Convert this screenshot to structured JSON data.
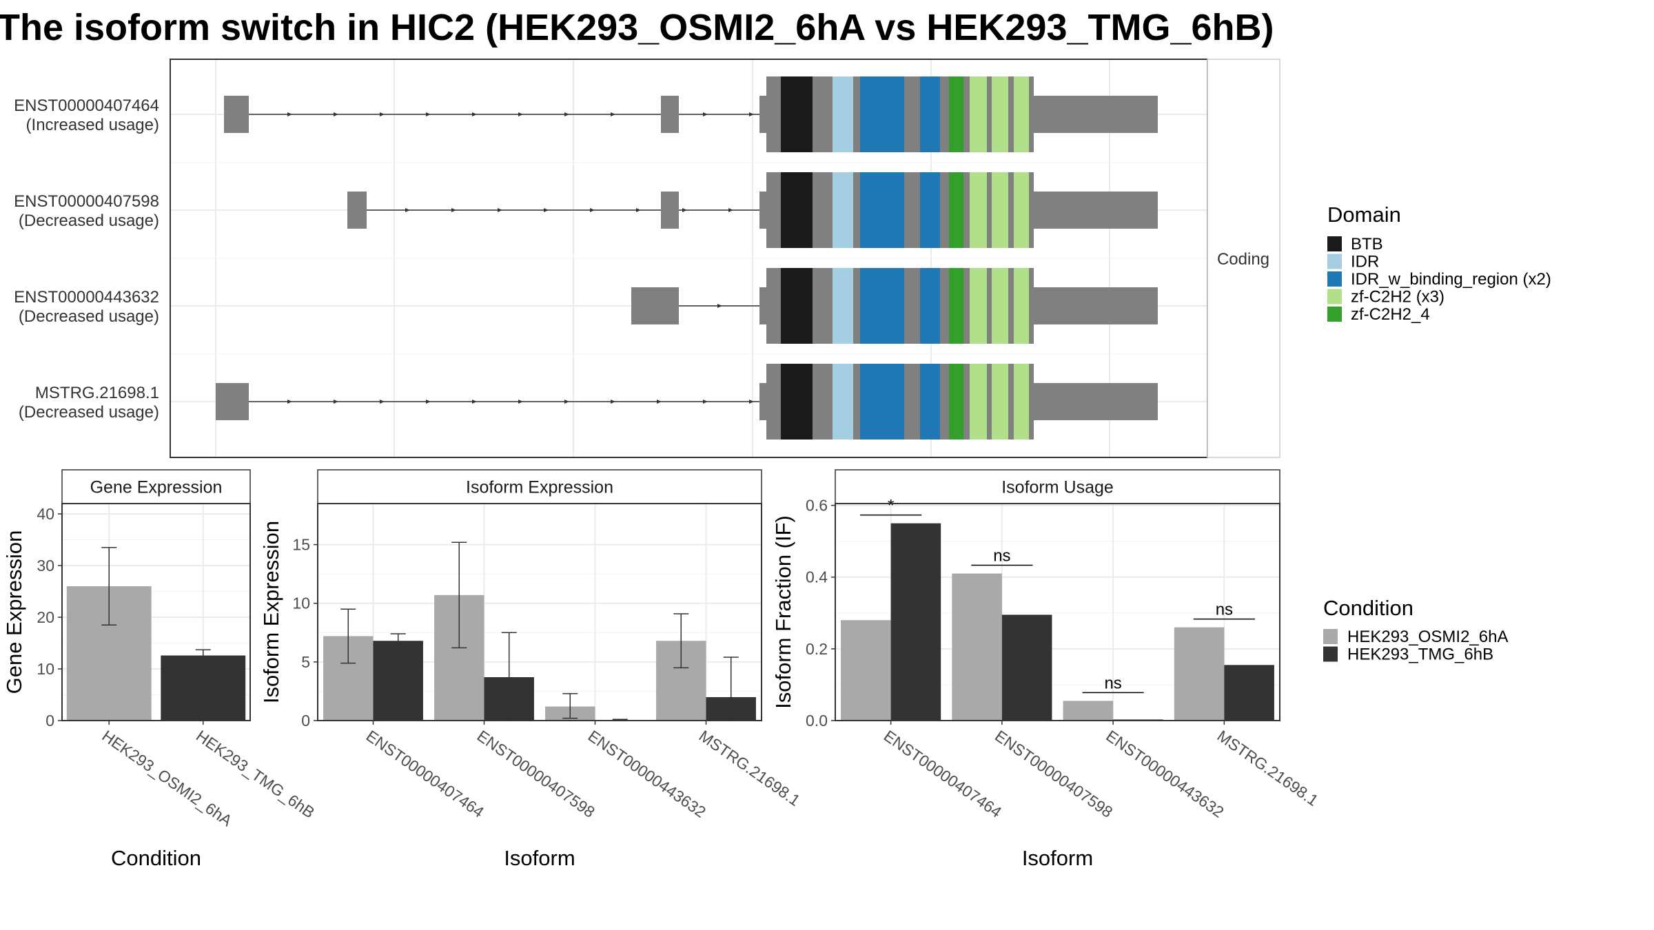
{
  "title": "The isoform switch in HIC2 (HEK293_OSMI2_6hA vs HEK293_TMG_6hB)",
  "colors": {
    "condition_a": "#a9a9a9",
    "condition_b": "#333333",
    "exon": "#808080"
  },
  "chart_data": [
    {
      "type": "gene-structure",
      "facet_label": "Coding",
      "transcripts": [
        {
          "id": "ENST00000407464",
          "label": "(Increased usage)"
        },
        {
          "id": "ENST00000407598",
          "label": "(Decreased usage)"
        },
        {
          "id": "ENST00000443632",
          "label": "(Decreased usage)"
        },
        {
          "id": "MSTRG.21698.1",
          "label": "(Decreased usage)"
        }
      ],
      "legend": {
        "title": "Domain",
        "items": [
          {
            "name": "BTB",
            "color": "#1a1a1a"
          },
          {
            "name": "IDR",
            "color": "#a6cee3"
          },
          {
            "name": "IDR_w_binding_region (x2)",
            "color": "#1f78b4"
          },
          {
            "name": "zf-C2H2 (x3)",
            "color": "#b2df8a"
          },
          {
            "name": "zf-C2H2_4",
            "color": "#33a02c"
          }
        ]
      }
    },
    {
      "type": "bar",
      "title": "Gene Expression",
      "xlabel": "Condition",
      "ylabel": "Gene Expression",
      "ylim": [
        0,
        42
      ],
      "yticks": [
        0,
        10,
        20,
        30,
        40
      ],
      "categories": [
        "HEK293_OSMI2_6hA",
        "HEK293_TMG_6hB"
      ],
      "values": [
        26.0,
        12.6
      ],
      "error_low": [
        18.5,
        11.6
      ],
      "error_high": [
        33.5,
        13.7
      ]
    },
    {
      "type": "bar",
      "title": "Isoform Expression",
      "xlabel": "Isoform",
      "ylabel": "Isoform Expression",
      "ylim": [
        0,
        18.5
      ],
      "yticks": [
        0,
        5,
        10,
        15
      ],
      "categories": [
        "ENST00000407464",
        "ENST00000407598",
        "ENST00000443632",
        "MSTRG.21698.1"
      ],
      "series": [
        {
          "name": "HEK293_OSMI2_6hA",
          "values": [
            7.2,
            10.7,
            1.2,
            6.8
          ],
          "error_low": [
            4.9,
            6.2,
            0.2,
            4.5
          ],
          "error_high": [
            9.5,
            15.2,
            2.3,
            9.1
          ]
        },
        {
          "name": "HEK293_TMG_6hB",
          "values": [
            6.8,
            3.7,
            0.05,
            2.0
          ],
          "error_low": [
            6.3,
            0.0,
            0.0,
            0.0
          ],
          "error_high": [
            7.4,
            7.5,
            0.1,
            5.4
          ]
        }
      ]
    },
    {
      "type": "bar",
      "title": "Isoform Usage",
      "xlabel": "Isoform",
      "ylabel": "Isoform Fraction (IF)",
      "ylim": [
        0,
        0.605
      ],
      "yticks": [
        "0.0",
        "0.2",
        "0.4",
        "0.6"
      ],
      "categories": [
        "ENST00000407464",
        "ENST00000407598",
        "ENST00000443632",
        "MSTRG.21698.1"
      ],
      "series": [
        {
          "name": "HEK293_OSMI2_6hA",
          "values": [
            0.28,
            0.41,
            0.055,
            0.26
          ]
        },
        {
          "name": "HEK293_TMG_6hB",
          "values": [
            0.55,
            0.295,
            0.003,
            0.155
          ]
        }
      ],
      "significance": [
        "*",
        "ns",
        "ns",
        "ns"
      ],
      "legend": {
        "title": "Condition",
        "items": [
          "HEK293_OSMI2_6hA",
          "HEK293_TMG_6hB"
        ]
      }
    }
  ]
}
